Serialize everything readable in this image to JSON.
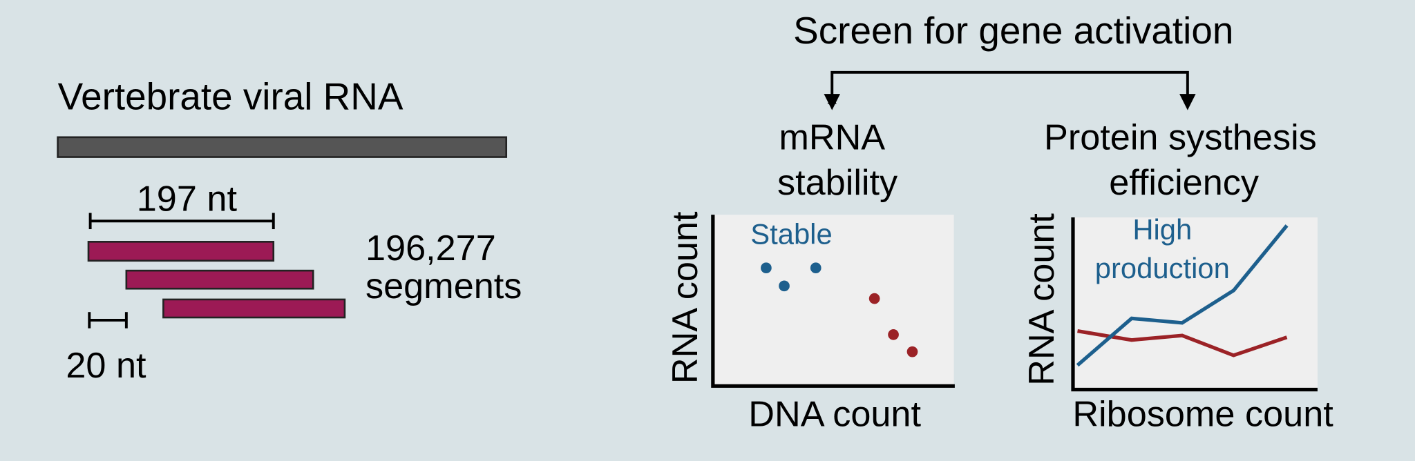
{
  "left": {
    "title": "Vertebrate viral RNA",
    "segment_length": "197 nt",
    "segment_count": "196,277",
    "segment_unit": "segments",
    "step": "20 nt"
  },
  "right": {
    "title": "Screen for gene activation",
    "panels": [
      {
        "heading": [
          "mRNA",
          "stability"
        ],
        "y_label": "RNA count",
        "x_label": "DNA count",
        "annotation": [
          "Stable"
        ]
      },
      {
        "heading": [
          "Protein systhesis",
          "efficiency"
        ],
        "y_label": "RNA count",
        "x_label": "Ribosome count",
        "annotation": [
          "High",
          "production"
        ]
      }
    ]
  }
}
